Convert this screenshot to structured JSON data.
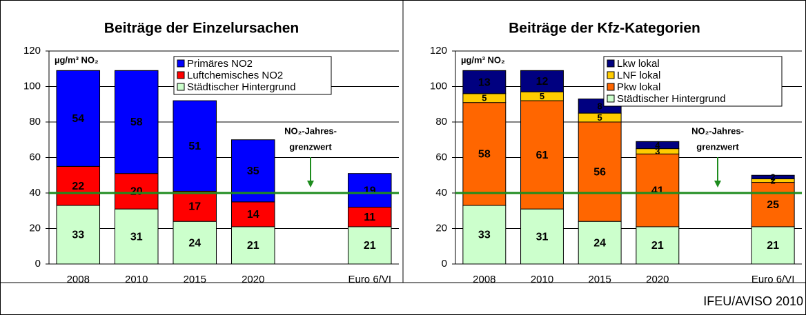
{
  "chart_data": [
    {
      "type": "bar",
      "title": "Beiträge der Einzelursachen",
      "y_label": "µg/m³ NO₂",
      "categories": [
        "2008",
        "2010",
        "2015",
        "2020",
        null,
        "Euro 6/VI"
      ],
      "series": [
        {
          "name": "Städtischer Hintergrund",
          "color": "#ccffcc",
          "label_color": "#000000",
          "values": [
            33,
            31,
            24,
            21,
            null,
            21
          ]
        },
        {
          "name": "Luftchemisches NO2",
          "color": "#ff0000",
          "label_color": "#ffffff",
          "values": [
            22,
            20,
            17,
            14,
            null,
            11
          ]
        },
        {
          "name": "Primäres NO2",
          "color": "#0000ff",
          "label_color": "#ffffff",
          "values": [
            54,
            58,
            51,
            35,
            null,
            19
          ]
        }
      ],
      "ylim": [
        0,
        120
      ],
      "yticks": [
        0,
        20,
        40,
        60,
        80,
        100,
        120
      ],
      "grid": true,
      "hline": {
        "value": 40,
        "color": "#1e8c1e"
      },
      "annotation": [
        "NO₂-Jahres-",
        "grenzwert"
      ]
    },
    {
      "type": "bar",
      "title": "Beiträge der Kfz-Kategorien",
      "y_label": "µg/m³ NO₂",
      "categories": [
        "2008",
        "2010",
        "2015",
        "2020",
        null,
        "Euro 6/VI"
      ],
      "series": [
        {
          "name": "Städtischer Hintergrund",
          "color": "#ccffcc",
          "label_color": "#000000",
          "values": [
            33,
            31,
            24,
            21,
            null,
            21
          ]
        },
        {
          "name": "Pkw lokal",
          "color": "#ff6600",
          "label_color": "#000000",
          "values": [
            58,
            61,
            56,
            41,
            null,
            25
          ]
        },
        {
          "name": "LNF lokal",
          "color": "#ffcc00",
          "label_color": "#000000",
          "values": [
            5,
            5,
            5,
            3,
            null,
            2
          ]
        },
        {
          "name": "Lkw lokal",
          "color": "#000080",
          "label_color": "#ffffff",
          "values": [
            13,
            12,
            8,
            4,
            null,
            2
          ]
        }
      ],
      "ylim": [
        0,
        120
      ],
      "yticks": [
        0,
        20,
        40,
        60,
        80,
        100,
        120
      ],
      "grid": true,
      "hline": {
        "value": 40,
        "color": "#1e8c1e"
      },
      "annotation": [
        "NO₂-Jahres-",
        "grenzwert"
      ]
    }
  ],
  "footer": "IFEU/AVISO 2010"
}
